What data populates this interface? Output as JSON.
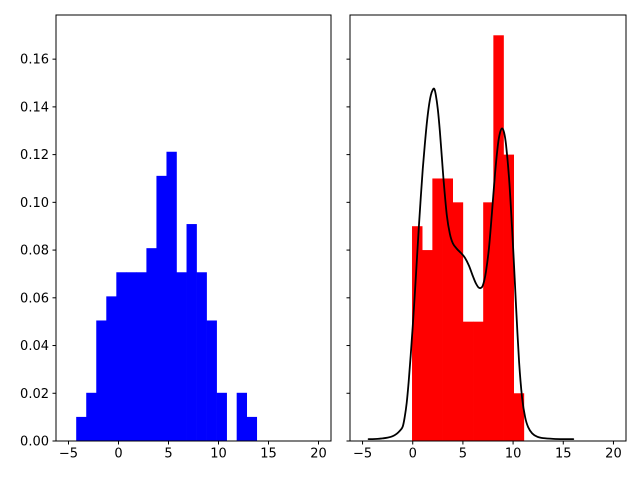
{
  "figure": {
    "background": "#ffffff",
    "title": ""
  },
  "colors": {
    "axis": "#000000",
    "tick_text": "#000000",
    "left_hist": "#0000ff",
    "right_hist": "#ff0000",
    "kde_line": "#000000"
  },
  "chart_data": [
    {
      "type": "bar",
      "name": "left-histogram",
      "title": "",
      "xlabel": "",
      "ylabel": "",
      "grid": false,
      "legend": null,
      "xlim": [
        -6.25,
        21.25
      ],
      "ylim": [
        0,
        0.1785
      ],
      "xticks": [
        -5,
        0,
        5,
        10,
        15,
        20
      ],
      "xtick_labels": [
        "−5",
        "0",
        "5",
        "10",
        "15",
        "20"
      ],
      "yticks": [
        0.0,
        0.02,
        0.04,
        0.06,
        0.08,
        0.1,
        0.12,
        0.14,
        0.16
      ],
      "ytick_labels": [
        "0.00",
        "0.02",
        "0.04",
        "0.06",
        "0.08",
        "0.10",
        "0.12",
        "0.14",
        "0.16"
      ],
      "bars": {
        "color": "#0000ff",
        "bin_start": -4.23,
        "bin_width": 1.003,
        "heights": [
          0.0101,
          0.0202,
          0.0505,
          0.0606,
          0.0707,
          0.0707,
          0.0707,
          0.0808,
          0.1111,
          0.1212,
          0.0707,
          0.0909,
          0.0707,
          0.0505,
          0.0202,
          0,
          0.0202,
          0.0101
        ]
      },
      "curve": null
    },
    {
      "type": "bar",
      "name": "right-histogram",
      "title": "",
      "xlabel": "",
      "ylabel": "",
      "grid": false,
      "legend": null,
      "xlim": [
        -6.25,
        21.25
      ],
      "ylim": [
        0,
        0.1785
      ],
      "xticks": [
        -5,
        0,
        5,
        10,
        15,
        20
      ],
      "xtick_labels": [
        "−5",
        "0",
        "5",
        "10",
        "15",
        "20"
      ],
      "yticks": [
        0.0,
        0.02,
        0.04,
        0.06,
        0.08,
        0.1,
        0.12,
        0.14,
        0.16
      ],
      "ytick_labels": null,
      "bars": {
        "color": "#ff0000",
        "bin_start": -0.07,
        "bin_width": 1.013,
        "heights": [
          0.09,
          0.08,
          0.11,
          0.11,
          0.1,
          0.05,
          0.05,
          0.1,
          0.17,
          0.12,
          0.02
        ]
      },
      "curve": {
        "kind": "kde",
        "color": "#000000",
        "x": [
          -4.4,
          -4.0,
          -3.5,
          -3.0,
          -2.5,
          -2.0,
          -1.6,
          -1.3,
          -1.0,
          -0.8,
          -0.6,
          -0.4,
          -0.2,
          0.0,
          0.2,
          0.4,
          0.6,
          0.8,
          1.0,
          1.2,
          1.4,
          1.6,
          1.8,
          2.0,
          2.15,
          2.3,
          2.5,
          2.7,
          2.9,
          3.1,
          3.4,
          3.7,
          4.0,
          4.4,
          4.8,
          5.2,
          5.6,
          6.0,
          6.3,
          6.6,
          6.9,
          7.1,
          7.3,
          7.6,
          7.9,
          8.2,
          8.5,
          8.7,
          8.9,
          9.1,
          9.3,
          9.6,
          9.9,
          10.1,
          10.3,
          10.6,
          10.9,
          11.2,
          11.5,
          11.9,
          12.4,
          13.0,
          14.0,
          15.0,
          16.0
        ],
        "y": [
          0.0008,
          0.0008,
          0.0009,
          0.0011,
          0.0014,
          0.002,
          0.003,
          0.0042,
          0.006,
          0.01,
          0.016,
          0.025,
          0.036,
          0.048,
          0.061,
          0.075,
          0.089,
          0.102,
          0.114,
          0.124,
          0.133,
          0.14,
          0.1448,
          0.1472,
          0.1475,
          0.145,
          0.139,
          0.13,
          0.119,
          0.108,
          0.0945,
          0.0868,
          0.0828,
          0.0805,
          0.0788,
          0.0768,
          0.0735,
          0.069,
          0.066,
          0.0642,
          0.0645,
          0.0668,
          0.071,
          0.081,
          0.096,
          0.112,
          0.1245,
          0.1292,
          0.131,
          0.1293,
          0.124,
          0.11,
          0.089,
          0.073,
          0.056,
          0.033,
          0.018,
          0.01,
          0.0058,
          0.0032,
          0.0018,
          0.0012,
          0.0009,
          0.0008,
          0.0008
        ]
      }
    }
  ]
}
